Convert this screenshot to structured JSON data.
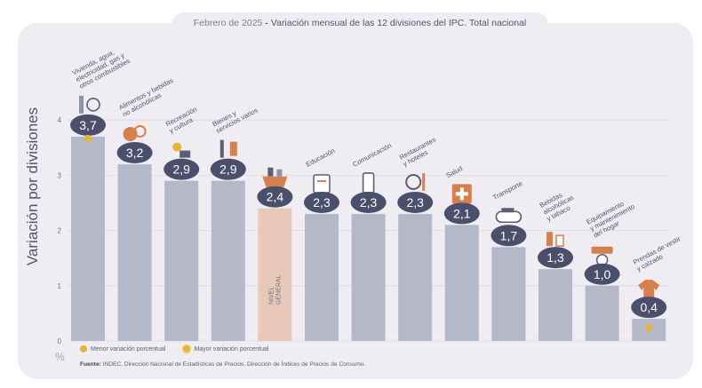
{
  "title": {
    "date": "Febrero de 2025",
    "separator": "-",
    "main": "Variación mensual de las 12 divisiones del IPC. Total nacional"
  },
  "ylabel": "Variación por divisiones",
  "unit": "%",
  "legend": [
    {
      "label": "Menor variación porcentual"
    },
    {
      "label": "Mayor variación porcentual"
    }
  ],
  "source": {
    "label": "Fuente:",
    "text": "INDEC, Dirección Nacional de Estadísticas de Precios. Dirección de Índices de Precios de Consumo."
  },
  "colors": {
    "bar": "#b4b8c8",
    "highlight": "#e8c9b8",
    "accent": "#e8b433",
    "badge": "#4a4f6b",
    "icon": "#d5804d"
  },
  "chart_data": {
    "type": "bar",
    "ylim": [
      0,
      4
    ],
    "yticks": [
      "0",
      "1",
      "2",
      "3",
      "4"
    ],
    "categories": [
      "Vivienda, agua, electricidad, gas y otros combustibles",
      "Alimentos y bebidas no alcohólicas",
      "Recreación y cultura",
      "Bienes y servicios varios",
      "NIVEL GENERAL",
      "Educación",
      "Comunicación",
      "Restaurantes y hoteles",
      "Salud",
      "Transporte",
      "Bebidas alcohólicas y tabaco",
      "Equipamiento y mantenimiento del hogar",
      "Prendas de vestir y calzado"
    ],
    "values": [
      3.7,
      3.2,
      2.9,
      2.9,
      2.4,
      2.3,
      2.3,
      2.3,
      2.1,
      1.7,
      1.3,
      1.0,
      0.4
    ],
    "value_labels": [
      "3,7",
      "3,2",
      "2,9",
      "2,9",
      "2,4",
      "2,3",
      "2,3",
      "2,3",
      "2,1",
      "1,7",
      "1,3",
      "1,0",
      "0,4"
    ],
    "category_lines": [
      [
        "Vivienda, agua,",
        "electricidad, gas y",
        "otros combustibles"
      ],
      [
        "Alimentos y bebidas",
        "no alcohólicas"
      ],
      [
        "Recreación",
        "y cultura"
      ],
      [
        "Bienes y",
        "servicios varios"
      ],
      [
        "NIVEL",
        "GENERAL"
      ],
      [
        "Educación"
      ],
      [
        "Comunicación"
      ],
      [
        "Restaurantes",
        "y hoteles"
      ],
      [
        "Salud"
      ],
      [
        "Transporte"
      ],
      [
        "Bebidas",
        "alcohólicas",
        "y tabaco"
      ],
      [
        "Equipamiento",
        "y mantenimiento",
        "del hogar"
      ],
      [
        "Prendas de vestir",
        "y calzado"
      ]
    ],
    "icons": [
      "household-icon",
      "food-icon",
      "recreation-icon",
      "services-icon",
      "basket-icon",
      "education-icon",
      "communication-icon",
      "restaurant-icon",
      "health-icon",
      "transport-icon",
      "beverages-icon",
      "household-equipment-icon",
      "clothing-icon"
    ],
    "highlight_index": 4,
    "max_index": 0,
    "min_index": 12,
    "grid": true
  }
}
